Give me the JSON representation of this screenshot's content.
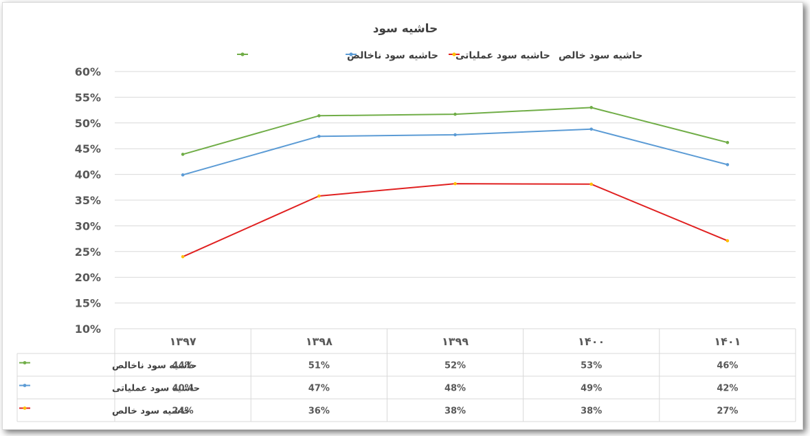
{
  "chart_data": {
    "type": "line",
    "title": "حاشیه سود",
    "categories": [
      "۱۳۹۷",
      "۱۳۹۸",
      "۱۳۹۹",
      "۱۴۰۰",
      "۱۴۰۱"
    ],
    "y_ticks": [
      "60%",
      "55%",
      "50%",
      "45%",
      "40%",
      "35%",
      "30%",
      "25%",
      "20%",
      "15%",
      "10%"
    ],
    "ylim": [
      0.1,
      0.6
    ],
    "grid": true,
    "legend_position": "top",
    "data_table": true,
    "series": [
      {
        "name": "حاشیه سود ناخالص",
        "color": "#70ad47",
        "values": [
          0.439,
          0.514,
          0.517,
          0.53,
          0.462
        ],
        "labels": [
          "44%",
          "51%",
          "52%",
          "53%",
          "46%"
        ]
      },
      {
        "name": "حاشیه سود عملیاتی",
        "color": "#5b9bd5",
        "values": [
          0.399,
          0.474,
          0.477,
          0.488,
          0.419
        ],
        "labels": [
          "40%",
          "47%",
          "48%",
          "49%",
          "42%"
        ]
      },
      {
        "name": "حاشیه سود خالص",
        "color": "#e02020",
        "marker_color": "#ffc000",
        "values": [
          0.24,
          0.358,
          0.382,
          0.381,
          0.271
        ],
        "labels": [
          "24%",
          "36%",
          "38%",
          "38%",
          "27%"
        ]
      }
    ]
  }
}
